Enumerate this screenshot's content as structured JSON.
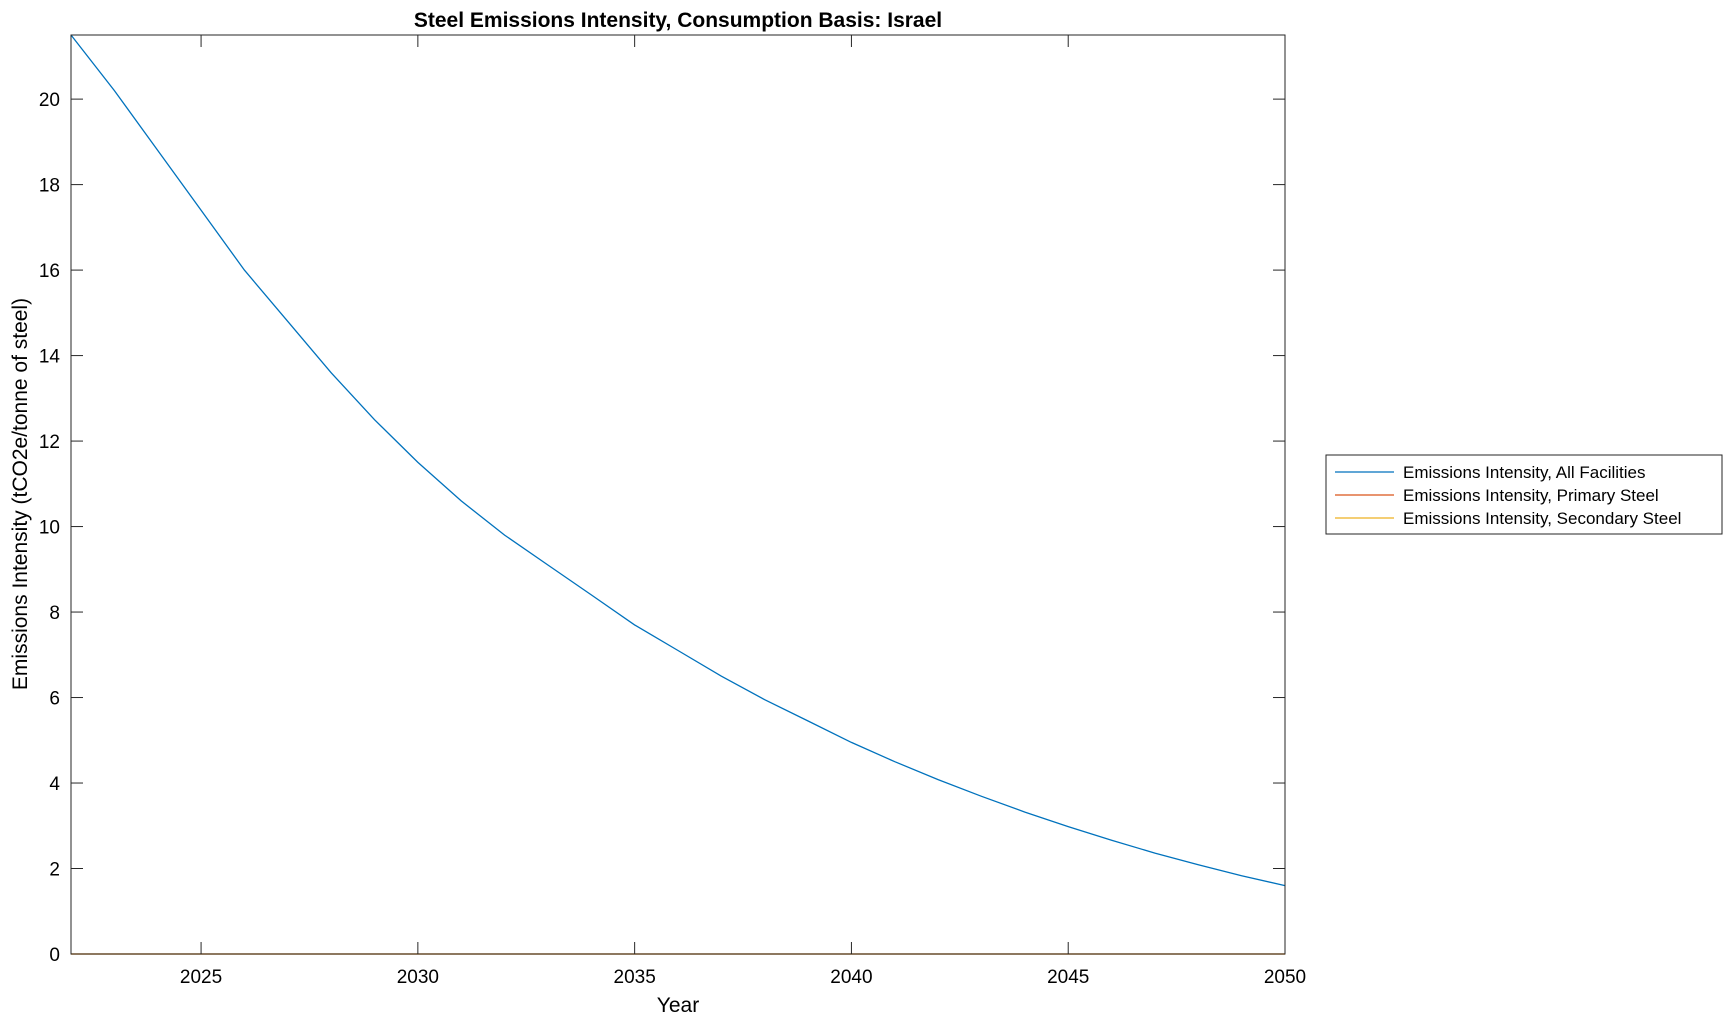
{
  "chart_data": {
    "type": "line",
    "title": "Steel Emissions Intensity, Consumption Basis: Israel",
    "xlabel": "Year",
    "ylabel": "Emissions Intensity (tCO2e/tonne of steel)",
    "xlim": [
      2022,
      2050
    ],
    "ylim": [
      0,
      21.5
    ],
    "xticks": [
      "2025",
      "2030",
      "2035",
      "2040",
      "2045",
      "2050"
    ],
    "yticks": [
      "0",
      "2",
      "4",
      "6",
      "8",
      "10",
      "12",
      "14",
      "16",
      "18",
      "20"
    ],
    "grid": false,
    "legend_position": "outside-right",
    "x": [
      2022,
      2023,
      2024,
      2025,
      2026,
      2027,
      2028,
      2029,
      2030,
      2031,
      2032,
      2033,
      2034,
      2035,
      2036,
      2037,
      2038,
      2039,
      2040,
      2041,
      2042,
      2043,
      2044,
      2045,
      2046,
      2047,
      2048,
      2049,
      2050
    ],
    "series": [
      {
        "name": "Emissions Intensity, All Facilities",
        "color": "#0072BD",
        "values": [
          21.5,
          20.2,
          18.8,
          17.4,
          16.0,
          14.8,
          13.6,
          12.5,
          11.5,
          10.6,
          9.8,
          9.1,
          8.4,
          7.7,
          7.1,
          6.5,
          5.95,
          5.45,
          4.95,
          4.5,
          4.08,
          3.69,
          3.32,
          2.98,
          2.66,
          2.36,
          2.09,
          1.83,
          1.6
        ]
      },
      {
        "name": "Emissions Intensity, Primary Steel",
        "color": "#D95319",
        "values": [
          0,
          0,
          0,
          0,
          0,
          0,
          0,
          0,
          0,
          0,
          0,
          0,
          0,
          0,
          0,
          0,
          0,
          0,
          0,
          0,
          0,
          0,
          0,
          0,
          0,
          0,
          0,
          0,
          0
        ]
      },
      {
        "name": "Emissions Intensity, Secondary Steel",
        "color": "#EDB120",
        "values": [
          0,
          0,
          0,
          0,
          0,
          0,
          0,
          0,
          0,
          0,
          0,
          0,
          0,
          0,
          0,
          0,
          0,
          0,
          0,
          0,
          0,
          0,
          0,
          0,
          0,
          0,
          0,
          0,
          0
        ]
      }
    ]
  }
}
